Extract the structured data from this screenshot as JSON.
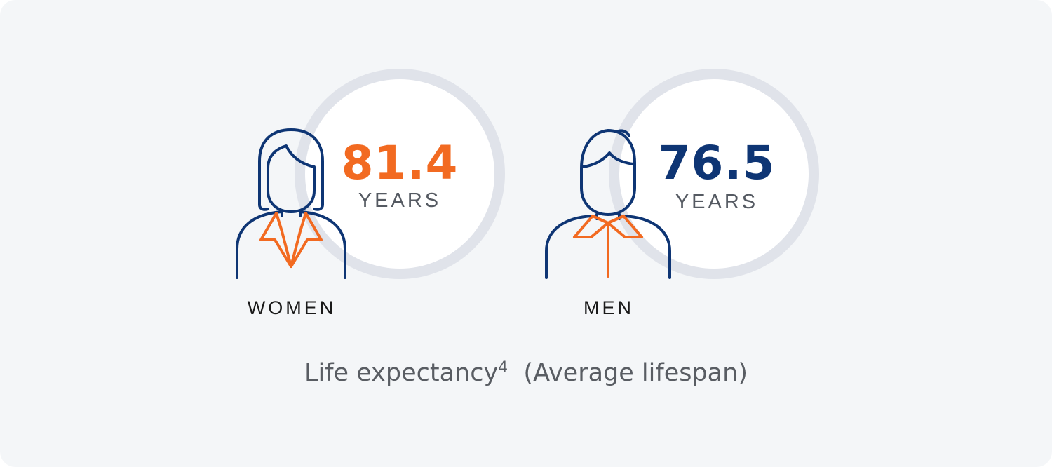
{
  "women": {
    "label": "WOMEN",
    "value": "81.4",
    "unit": "YEARS",
    "value_color": "#f26a21",
    "icon": "woman-icon"
  },
  "men": {
    "label": "MEN",
    "value": "76.5",
    "unit": "YEARS",
    "value_color": "#0e3574",
    "icon": "man-icon"
  },
  "caption": {
    "main": "Life expectancy",
    "superscript": "4",
    "sub": "(Average lifespan)"
  },
  "colors": {
    "outline": "#0e3574",
    "accent": "#f26a21",
    "ring": "#e0e3ea",
    "background": "#f4f6f8"
  }
}
